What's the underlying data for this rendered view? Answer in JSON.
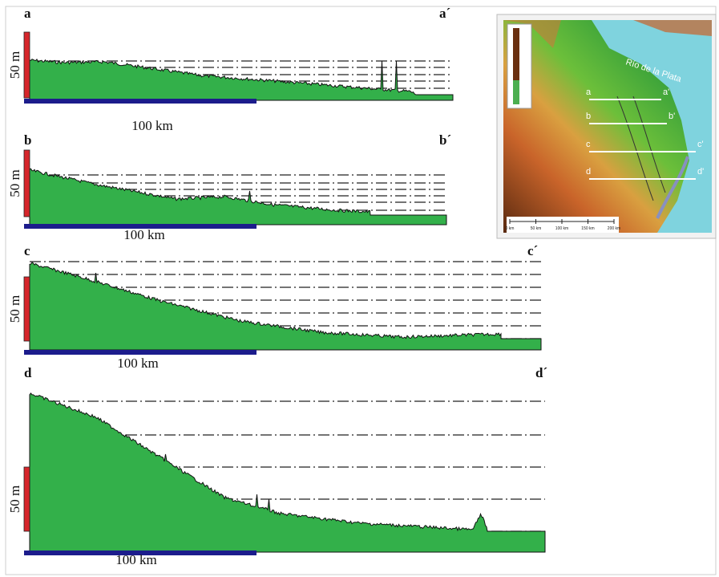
{
  "panels": [
    {
      "start": "a",
      "end": "a´",
      "vertical_scale": "50 m",
      "horizontal_scale": "100 km"
    },
    {
      "start": "b",
      "end": "b´",
      "vertical_scale": "50 m",
      "horizontal_scale": "100 km"
    },
    {
      "start": "c",
      "end": "c´",
      "vertical_scale": "50 m",
      "horizontal_scale": "100 km"
    },
    {
      "start": "d",
      "end": "d´",
      "vertical_scale": "50 m",
      "horizontal_scale": "100 km"
    }
  ],
  "map": {
    "river": "Río de la Plata",
    "transects": [
      {
        "start": "a",
        "end": "a'"
      },
      {
        "start": "b",
        "end": "b'"
      },
      {
        "start": "c",
        "end": "c'"
      },
      {
        "start": "d",
        "end": "d'"
      }
    ],
    "scale": [
      "0 km",
      "50 km",
      "100 km",
      "150 km",
      "200 km"
    ]
  }
}
